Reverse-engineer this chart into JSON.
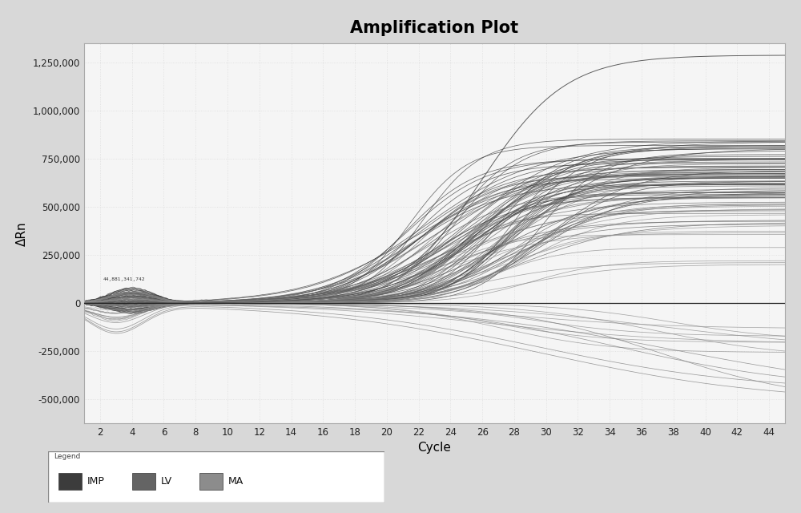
{
  "title": "Amplification Plot",
  "xlabel": "Cycle",
  "ylabel": "ΔRn",
  "xlim": [
    1,
    45
  ],
  "ylim": [
    -625000,
    1350000
  ],
  "xticks": [
    2,
    4,
    6,
    8,
    10,
    12,
    14,
    16,
    18,
    20,
    22,
    24,
    26,
    28,
    30,
    32,
    34,
    36,
    38,
    40,
    42,
    44
  ],
  "yticks": [
    -500000,
    -250000,
    0,
    250000,
    500000,
    750000,
    1000000,
    1250000
  ],
  "ytick_labels": [
    "-500,000",
    "-250,000",
    "0",
    "250,000",
    "500,000",
    "750,000",
    "1,000,000",
    "1,250,000"
  ],
  "legend_labels": [
    "IMP",
    "LV",
    "MA"
  ],
  "legend_colors": [
    "#3c3c3c",
    "#646464",
    "#8c8c8c"
  ],
  "background_color": "#f0f0f0",
  "plot_bg_color": "#f5f5f5",
  "grid_color": "#dddddd",
  "outer_bg": "#d8d8d8",
  "n_imp": 45,
  "n_lv": 35,
  "n_ma": 20,
  "annotation_text": "44,881,341,742"
}
